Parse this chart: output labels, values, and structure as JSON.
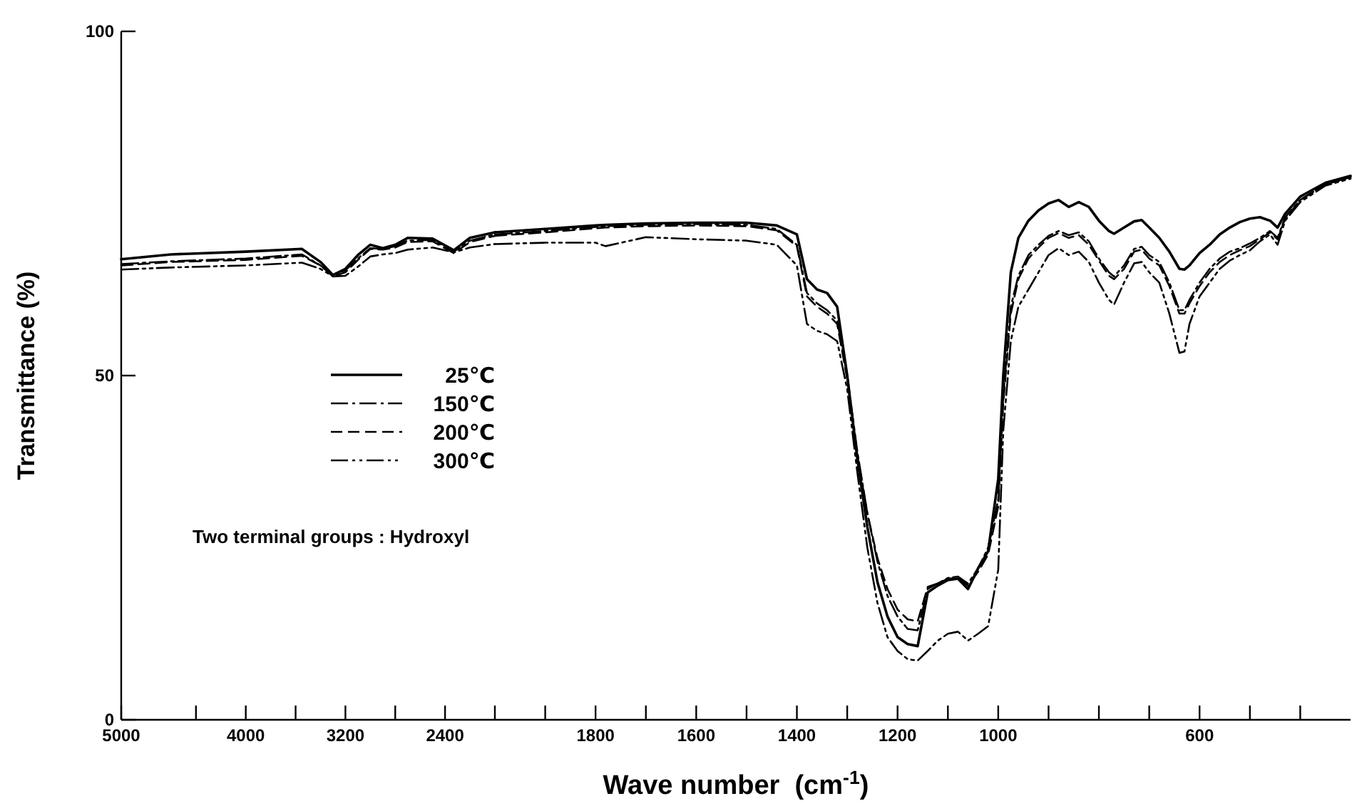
{
  "chart_data": [
    {
      "type": "line",
      "ylabel": "Transmittance (%)",
      "annotations": [
        "Two terminal groups : Hydroxyl"
      ],
      "x": [
        5000,
        4600,
        4000,
        3550,
        3400,
        3300,
        3200,
        3100,
        3000,
        2900,
        2800,
        2700,
        2500,
        2330,
        2200,
        2000
      ],
      "xlim": [
        5000,
        2000
      ],
      "xticks": [
        5000,
        {
          "value": 4400,
          "label": null
        },
        4000,
        {
          "value": 3600,
          "label": null
        },
        3200,
        {
          "value": 2800,
          "label": null
        },
        2400
      ],
      "ylim": [
        0,
        100
      ],
      "yticks": [
        0,
        50,
        100
      ],
      "legend": "right",
      "grid": false,
      "marker": "none",
      "series": [
        {
          "name": "25℃",
          "color": "#000000",
          "line_style": "solid",
          "values": [
            66.9,
            67.6,
            68.0,
            68.4,
            66.5,
            64.6,
            65.5,
            67.5,
            69.0,
            68.5,
            69.0,
            70.0,
            69.9,
            68.2,
            70.0,
            70.8
          ]
        },
        {
          "name": "150℃",
          "color": "#000000",
          "line_style": "dashdot",
          "values": [
            66.2,
            66.6,
            67.0,
            67.6,
            66.0,
            64.6,
            65.3,
            67.0,
            68.5,
            68.4,
            68.8,
            69.6,
            69.7,
            68.0,
            69.6,
            70.5
          ]
        },
        {
          "name": "200℃",
          "color": "#000000",
          "line_style": "dashed",
          "values": [
            66.0,
            66.5,
            66.8,
            67.4,
            66.0,
            64.4,
            65.0,
            66.8,
            68.4,
            68.3,
            68.6,
            69.4,
            69.5,
            67.8,
            69.4,
            70.3
          ]
        },
        {
          "name": "300℃",
          "color": "#000000",
          "line_style": "dashdotdot",
          "values": [
            65.4,
            65.7,
            66.0,
            66.4,
            65.5,
            64.4,
            64.5,
            65.8,
            67.3,
            67.6,
            67.8,
            68.3,
            68.6,
            67.9,
            68.6,
            69.1
          ]
        }
      ]
    },
    {
      "type": "line",
      "xlabel": "Wave number  (cm$^{-1}$)",
      "tick_labels": "x",
      "x": [
        2000,
        1900,
        1800,
        1780,
        1700,
        1600,
        1500,
        1440,
        1400,
        1380,
        1360,
        1340,
        1320,
        1300,
        1280,
        1260,
        1240,
        1220,
        1200,
        1180,
        1160,
        1140,
        1120,
        1100,
        1080,
        1060,
        1040,
        1020,
        1000,
        990,
        975,
        960,
        940,
        920,
        900,
        880,
        860,
        840,
        820,
        800,
        780,
        770,
        750,
        730,
        715,
        700,
        680,
        660,
        640,
        630,
        620,
        600,
        580,
        560,
        540,
        520,
        500,
        480,
        460,
        445,
        430,
        400,
        350,
        300
      ],
      "xlim": [
        2000,
        300
      ],
      "xticks": [
        {
          "value": 2000,
          "label": null
        },
        {
          "value": 1900,
          "label": null
        },
        1800,
        {
          "value": 1700,
          "label": null
        },
        1600,
        {
          "value": 1500,
          "label": null
        },
        1400,
        {
          "value": 1300,
          "label": null
        },
        1200,
        {
          "value": 1100,
          "label": null
        },
        1000,
        {
          "value": 900,
          "label": null
        },
        {
          "value": 800,
          "label": null
        },
        {
          "value": 700,
          "label": null
        },
        600,
        {
          "value": 500,
          "label": null
        },
        {
          "value": 400,
          "label": null
        }
      ],
      "ylim": [
        0,
        100
      ],
      "grid": false,
      "marker": "none",
      "series": [
        {
          "color": "#000000",
          "line_style": "solid",
          "values": [
            70.8,
            71.3,
            71.8,
            71.9,
            72.1,
            72.2,
            72.2,
            71.8,
            70.5,
            64.0,
            62.5,
            62.0,
            60.0,
            50.0,
            38.0,
            28.0,
            20.0,
            15.0,
            12.0,
            11.0,
            10.7,
            18.5,
            19.5,
            20.3,
            20.5,
            19.0,
            22.0,
            24.5,
            35.0,
            50.0,
            65.0,
            70.0,
            72.5,
            74.0,
            75.0,
            75.5,
            74.5,
            75.2,
            74.5,
            72.5,
            71.0,
            70.6,
            71.5,
            72.4,
            72.6,
            71.5,
            70.0,
            68.0,
            65.5,
            65.4,
            66.0,
            67.8,
            69.0,
            70.5,
            71.5,
            72.3,
            72.8,
            73.0,
            72.5,
            71.5,
            73.5,
            76.0,
            78.0,
            79.0
          ]
        },
        {
          "color": "#000000",
          "line_style": "dashdot",
          "values": [
            70.5,
            71.0,
            71.6,
            71.7,
            71.9,
            72.0,
            71.9,
            71.3,
            69.0,
            62.0,
            60.5,
            59.5,
            58.0,
            50.0,
            39.0,
            30.0,
            23.0,
            18.0,
            15.0,
            13.2,
            13.0,
            19.0,
            19.8,
            20.6,
            20.8,
            19.8,
            22.0,
            25.0,
            32.0,
            47.0,
            60.0,
            64.5,
            67.5,
            69.0,
            70.3,
            71.0,
            70.4,
            70.8,
            69.5,
            67.0,
            65.0,
            64.4,
            66.0,
            68.4,
            68.7,
            67.5,
            66.5,
            63.5,
            59.5,
            59.5,
            61.0,
            63.5,
            65.5,
            67.0,
            68.0,
            68.5,
            69.2,
            70.0,
            71.0,
            70.0,
            73.0,
            75.5,
            77.8,
            78.8
          ]
        },
        {
          "color": "#000000",
          "line_style": "dashed",
          "values": [
            70.3,
            70.8,
            71.4,
            71.5,
            71.7,
            71.8,
            71.7,
            71.1,
            68.8,
            61.5,
            60.0,
            59.0,
            57.5,
            49.5,
            38.5,
            30.0,
            23.5,
            19.0,
            16.0,
            14.6,
            14.3,
            19.3,
            19.8,
            20.5,
            20.6,
            19.5,
            21.5,
            24.0,
            31.0,
            46.0,
            59.0,
            64.0,
            67.0,
            68.6,
            70.0,
            70.7,
            70.0,
            70.4,
            69.0,
            66.7,
            64.5,
            64.0,
            65.5,
            68.0,
            68.3,
            67.0,
            66.0,
            63.0,
            59.0,
            59.0,
            60.5,
            63.0,
            65.0,
            66.5,
            67.5,
            68.2,
            68.8,
            69.8,
            70.8,
            69.8,
            72.8,
            75.5,
            77.8,
            78.8
          ]
        },
        {
          "color": "#000000",
          "line_style": "dashdotdot",
          "values": [
            69.1,
            69.3,
            69.3,
            68.8,
            70.1,
            69.8,
            69.6,
            69.0,
            66.0,
            57.5,
            56.5,
            56.0,
            55.0,
            48.0,
            36.0,
            25.0,
            17.0,
            12.0,
            10.0,
            8.8,
            8.6,
            10.0,
            11.5,
            12.5,
            12.8,
            11.5,
            12.5,
            13.6,
            21.8,
            42.0,
            55.0,
            60.0,
            62.5,
            65.0,
            67.5,
            68.5,
            67.5,
            68.0,
            66.5,
            63.5,
            61.0,
            60.3,
            63.5,
            66.3,
            66.5,
            65.0,
            63.5,
            59.0,
            53.3,
            53.5,
            57.5,
            61.5,
            63.5,
            65.5,
            66.7,
            67.5,
            68.2,
            69.5,
            70.5,
            69.0,
            72.5,
            75.2,
            77.6,
            78.6
          ]
        }
      ]
    }
  ]
}
